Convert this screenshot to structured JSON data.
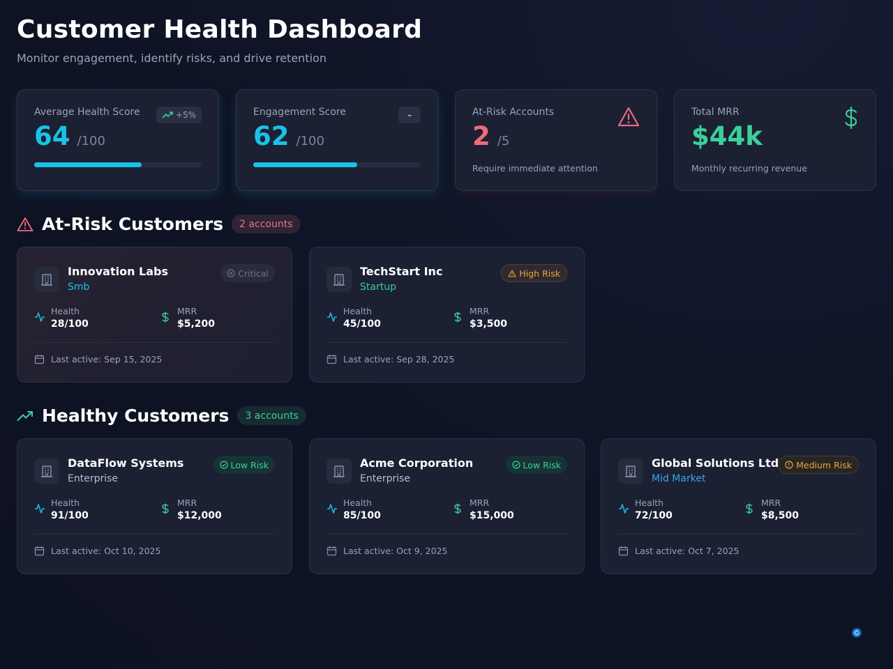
{
  "header": {
    "title": "Customer Health Dashboard",
    "subtitle": "Monitor engagement, identify risks, and drive retention"
  },
  "stats": [
    {
      "label": "Average Health Score",
      "value": "64",
      "unit": "/100",
      "trend": "+5%",
      "progress_percent": 64,
      "color": "#19c2e6"
    },
    {
      "label": "Engagement Score",
      "value": "62",
      "unit": "/100",
      "trend": "–",
      "progress_percent": 62,
      "color": "#19c2e6"
    },
    {
      "label": "At-Risk Accounts",
      "value": "2",
      "unit": "/5",
      "note": "Require immediate attention",
      "icon": "alert-triangle-icon",
      "color": "#ef6a7e"
    },
    {
      "label": "Total MRR",
      "value": "$44k",
      "note": "Monthly recurring revenue",
      "icon": "dollar-icon",
      "color": "#3ccf9a"
    }
  ],
  "at_risk": {
    "title": "At-Risk Customers",
    "count": "2 accounts",
    "customers": [
      {
        "name": "Innovation Labs",
        "segment": "Smb",
        "segment_color": "#19c2e6",
        "badge": "Critical",
        "health_label": "Health",
        "health": "28/100",
        "mrr_label": "MRR",
        "mrr": "$5,200",
        "last_active": "Last active: Sep 15, 2025"
      },
      {
        "name": "TechStart Inc",
        "segment": "Startup",
        "segment_color": "#3ccf9a",
        "badge": "High Risk",
        "health_label": "Health",
        "health": "45/100",
        "mrr_label": "MRR",
        "mrr": "$3,500",
        "last_active": "Last active: Sep 28, 2025"
      }
    ]
  },
  "healthy": {
    "title": "Healthy Customers",
    "count": "3 accounts",
    "customers": [
      {
        "name": "DataFlow Systems",
        "segment": "Enterprise",
        "segment_color": "#b8bfcf",
        "badge": "Low Risk",
        "health_label": "Health",
        "health": "91/100",
        "mrr_label": "MRR",
        "mrr": "$12,000",
        "last_active": "Last active: Oct 10, 2025"
      },
      {
        "name": "Acme Corporation",
        "segment": "Enterprise",
        "segment_color": "#b8bfcf",
        "badge": "Low Risk",
        "health_label": "Health",
        "health": "85/100",
        "mrr_label": "MRR",
        "mrr": "$15,000",
        "last_active": "Last active: Oct 9, 2025"
      },
      {
        "name": "Global Solutions Ltd",
        "segment": "Mid Market",
        "segment_color": "#3ba6e8",
        "badge": "Medium Risk",
        "health_label": "Health",
        "health": "72/100",
        "mrr_label": "MRR",
        "mrr": "$8,500",
        "last_active": "Last active: Oct 7, 2025"
      }
    ]
  },
  "colors": {
    "accent_cyan": "#19c2e6",
    "danger": "#ef6a7e",
    "success": "#3ccf9a",
    "warning": "#f2a33a"
  }
}
